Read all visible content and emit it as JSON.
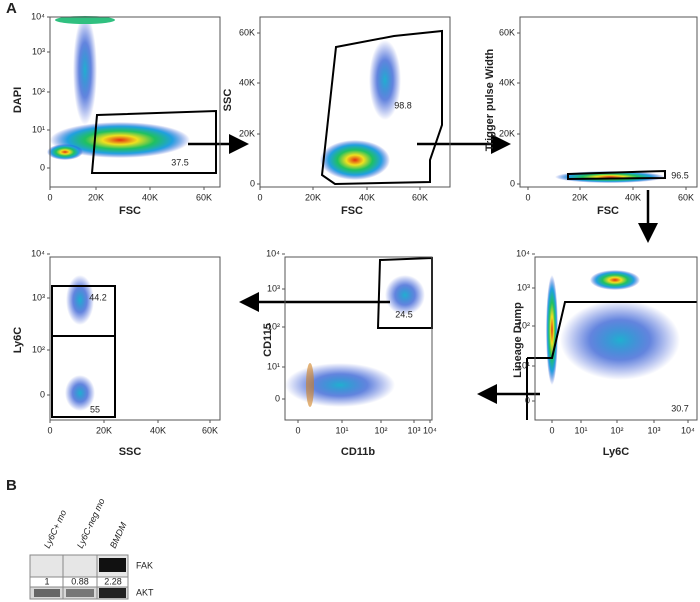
{
  "panel_labels": [
    "A",
    "B"
  ],
  "plots": [
    {
      "xlabel": "FSC",
      "ylabel": "DAPI",
      "xticks": [
        "0",
        "20K",
        "40K",
        "60K"
      ],
      "yticks": [
        "10⁴",
        "10³",
        "10²",
        "10¹",
        "0"
      ],
      "gate_label": "37.5"
    },
    {
      "xlabel": "FSC",
      "ylabel": "SSC",
      "xticks": [
        "0",
        "20K",
        "40K",
        "60K"
      ],
      "yticks": [
        "60K",
        "40K",
        "20K",
        "0"
      ],
      "gate_label": "98.8"
    },
    {
      "xlabel": "FSC",
      "ylabel": "Trigger pulse Width",
      "xticks": [
        "0",
        "20K",
        "40K",
        "60K"
      ],
      "yticks": [
        "60K",
        "40K",
        "20K",
        "0"
      ],
      "gate_label": "96.5"
    },
    {
      "xlabel": "SSC",
      "ylabel": "Ly6C",
      "xticks": [
        "0",
        "20K",
        "40K",
        "60K"
      ],
      "yticks": [
        "10⁴",
        "10³",
        "10²",
        "0"
      ],
      "gate_labels": [
        "44.2",
        "55"
      ]
    },
    {
      "xlabel": "CD11b",
      "ylabel": "CD115",
      "xticks": [
        "0",
        "10¹",
        "10²",
        "10³",
        "10⁴"
      ],
      "yticks": [
        "10⁴",
        "10³",
        "10²",
        "10¹",
        "0"
      ],
      "gate_label": "24.5"
    },
    {
      "xlabel": "Ly6C",
      "ylabel": "Lineage Dump",
      "xticks": [
        "0",
        "10¹",
        "10²",
        "10³",
        "10⁴"
      ],
      "yticks": [
        "10⁴",
        "10³",
        "10²",
        "10¹",
        "0"
      ],
      "gate_label": "30.7"
    }
  ],
  "blot": {
    "lanes": [
      "Ly6C+ mo",
      "Ly6C-neg mo",
      "BMDM"
    ],
    "bands": [
      "FAK",
      "AKT"
    ],
    "ratios": [
      "1",
      "0.88",
      "2.28"
    ]
  }
}
